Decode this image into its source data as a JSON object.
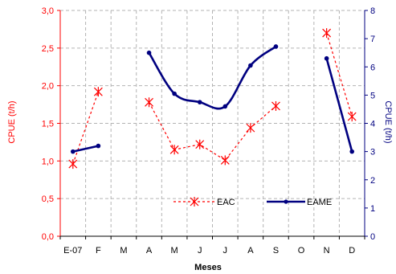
{
  "chart_data": {
    "type": "line",
    "title": "",
    "xlabel": "Meses",
    "ylabel_left": "CPUE (t/h)",
    "ylabel_right": "CPUE (t/h)",
    "categories": [
      "E-07",
      "F",
      "M",
      "A",
      "M",
      "J",
      "J",
      "A",
      "S",
      "O",
      "N",
      "D"
    ],
    "y_left": {
      "min": 0,
      "max": 3,
      "step": 0.5,
      "ticks": [
        "0,0",
        "0,5",
        "1,0",
        "1,5",
        "2,0",
        "2,5",
        "3,0"
      ]
    },
    "y_right": {
      "min": 0,
      "max": 8,
      "step": 1,
      "ticks": [
        "0",
        "1",
        "2",
        "3",
        "4",
        "5",
        "6",
        "7",
        "8"
      ]
    },
    "grid": true,
    "legend_position": "bottom-right",
    "series": [
      {
        "name": "EAC",
        "axis": "left",
        "style": "dashed",
        "marker": "asterisk",
        "color": "#ff0000",
        "segments": [
          [
            {
              "x": 0,
              "y": 0.96
            },
            {
              "x": 1,
              "y": 1.92
            }
          ],
          [
            {
              "x": 3,
              "y": 1.78
            },
            {
              "x": 4,
              "y": 1.15
            },
            {
              "x": 5,
              "y": 1.22
            },
            {
              "x": 6,
              "y": 1.01
            },
            {
              "x": 7,
              "y": 1.44
            },
            {
              "x": 8,
              "y": 1.73
            }
          ],
          [
            {
              "x": 10,
              "y": 2.7
            },
            {
              "x": 11,
              "y": 1.59
            }
          ]
        ]
      },
      {
        "name": "EAME",
        "axis": "right",
        "style": "solid",
        "marker": "dot",
        "color": "#000080",
        "segments": [
          [
            {
              "x": 0,
              "y": 3.0
            },
            {
              "x": 1,
              "y": 3.2
            }
          ],
          [
            {
              "x": 3,
              "y": 6.5
            },
            {
              "x": 4,
              "y": 5.05
            },
            {
              "x": 5,
              "y": 4.75
            },
            {
              "x": 6,
              "y": 4.6
            },
            {
              "x": 7,
              "y": 6.05
            },
            {
              "x": 8,
              "y": 6.72
            }
          ],
          [
            {
              "x": 10,
              "y": 6.3
            },
            {
              "x": 11,
              "y": 3.0
            }
          ]
        ]
      }
    ]
  }
}
